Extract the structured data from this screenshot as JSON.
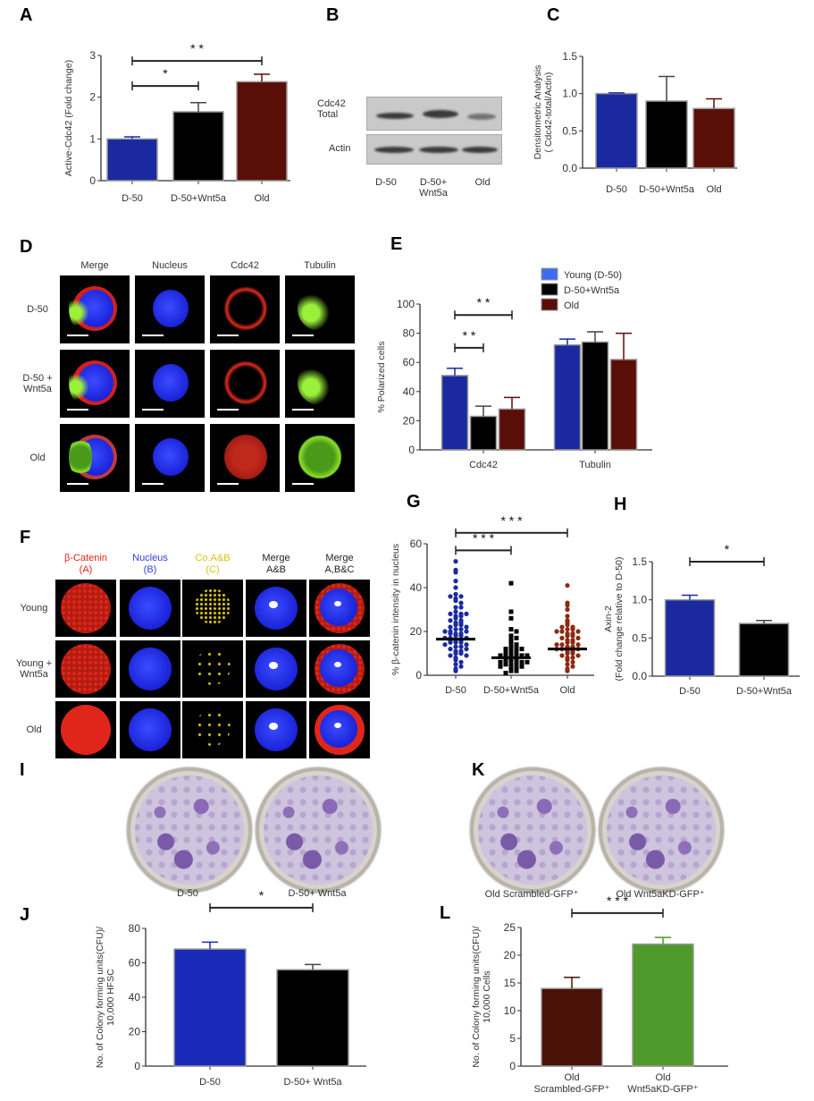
{
  "panels": {
    "A": "A",
    "B": "B",
    "C": "C",
    "D": "D",
    "E": "E",
    "F": "F",
    "G": "G",
    "H": "H",
    "I": "I",
    "J": "J",
    "K": "K",
    "L": "L"
  },
  "colors": {
    "blue": "#1a2a9e",
    "black": "#000000",
    "brown": "#5a0e08",
    "green": "#4e9a2a",
    "legend_blue": "#3d6cf0"
  },
  "blot": {
    "row_labels": [
      "Cdc42\nTotal",
      "Actin"
    ],
    "lanes": [
      "D-50",
      "D-50+\nWnt5a",
      "Old"
    ]
  },
  "panel_D": {
    "columns": [
      "Merge",
      "Nucleus",
      "Cdc42",
      "Tubulin"
    ],
    "rows": [
      "D-50",
      "D-50 +\nWnt5a",
      "Old"
    ]
  },
  "panel_F": {
    "columns": [
      {
        "text": "β-Catenin\n(A)",
        "color": "#e0261b"
      },
      {
        "text": "Nucleus\n(B)",
        "color": "#3440e0"
      },
      {
        "text": "Co.A&B\n(C)",
        "color": "#d8c21a"
      },
      {
        "text": "Merge\nA&B",
        "color": "#222222"
      },
      {
        "text": "Merge\nA,B&C",
        "color": "#222222"
      }
    ],
    "rows": [
      "Young",
      "Young +\nWnt5a",
      "Old"
    ]
  },
  "panel_I": {
    "labels": [
      "D-50",
      "D-50+ Wnt5a"
    ]
  },
  "panel_K": {
    "labels": [
      "Old Scrambled-GFP⁺",
      "Old Wnt5aKD-GFP⁺"
    ]
  },
  "chart_data": [
    {
      "panel": "A",
      "type": "bar",
      "ylabel": "Active-Cdc42 (Fold change)",
      "ylim": [
        0,
        3
      ],
      "ticks": [
        "0",
        "1",
        "2",
        "3"
      ],
      "tick_values": [
        0,
        1,
        2,
        3
      ],
      "categories": [
        "D-50",
        "D-50+Wnt5a",
        "Old"
      ],
      "series": [
        {
          "values": [
            1.0,
            1.65,
            2.37
          ],
          "errors": [
            0.05,
            0.22,
            0.18
          ],
          "colors": [
            "#1a2a9e",
            "#000000",
            "#5a0e08"
          ]
        }
      ],
      "brackets": [
        {
          "from": 0,
          "to": 1,
          "y": 2.27,
          "label": "*"
        },
        {
          "from": 0,
          "to": 2,
          "y": 2.87,
          "label": "* *"
        }
      ]
    },
    {
      "panel": "C",
      "type": "bar",
      "ylabel": "Densitometric Analysis\n( Cdc42-total/Actin)",
      "ylim": [
        0,
        1.5
      ],
      "ticks": [
        "0.0",
        "0.5",
        "1.0",
        "1.5"
      ],
      "tick_values": [
        0,
        0.5,
        1,
        1.5
      ],
      "categories": [
        "D-50",
        "D-50+Wnt5a",
        "Old"
      ],
      "series": [
        {
          "values": [
            1.0,
            0.9,
            0.8
          ],
          "errors": [
            0.01,
            0.33,
            0.13
          ],
          "colors": [
            "#1a2a9e",
            "#000000",
            "#5a0e08"
          ]
        }
      ],
      "brackets": []
    },
    {
      "panel": "E",
      "type": "bar",
      "ylabel": "% Polarized cells",
      "ylim": [
        0,
        100
      ],
      "ticks": [
        "0",
        "20",
        "40",
        "60",
        "80",
        "100"
      ],
      "tick_values": [
        0,
        20,
        40,
        60,
        80,
        100
      ],
      "categories": [
        "Cdc42",
        "Tubulin"
      ],
      "series": [
        {
          "name": "Young (D-50)",
          "values": [
            51,
            72
          ],
          "errors": [
            5,
            4
          ],
          "color": "#1a2a9e"
        },
        {
          "name": "D-50+Wnt5a",
          "values": [
            23,
            74
          ],
          "errors": [
            7,
            7
          ],
          "color": "#000000"
        },
        {
          "name": "Old",
          "values": [
            28,
            62
          ],
          "errors": [
            8,
            18
          ],
          "color": "#5a0e08"
        }
      ],
      "legend": "top-right",
      "brackets": [
        {
          "from": [
            0,
            0
          ],
          "to": [
            1,
            0
          ],
          "y": 70,
          "label": "* *"
        },
        {
          "from": [
            0,
            0
          ],
          "to": [
            2,
            0
          ],
          "y": 92.5,
          "label": "* *"
        }
      ]
    },
    {
      "panel": "G",
      "type": "scatter",
      "ylabel": "% β-catenin intensity in nucleus",
      "ylim": [
        0,
        60
      ],
      "ticks": [
        "0",
        "20",
        "40",
        "60"
      ],
      "tick_values": [
        0,
        20,
        40,
        60
      ],
      "categories": [
        "D-50",
        "D-50+Wnt5a",
        "Old"
      ],
      "groups": [
        {
          "color": "#1a2a9e",
          "mean": 16.5,
          "points": [
            52,
            48,
            47,
            43,
            40,
            37,
            36,
            36,
            35,
            34,
            33,
            31,
            31,
            29,
            28,
            28,
            28,
            27,
            27,
            26,
            25,
            25,
            24,
            24,
            23,
            23,
            22,
            22,
            21,
            21,
            20,
            20,
            20,
            19,
            19,
            19,
            18,
            18,
            17,
            17,
            17,
            16,
            16,
            16,
            15,
            15,
            15,
            14,
            14,
            13,
            13,
            12,
            12,
            11,
            11,
            10,
            10,
            9,
            9,
            8,
            7,
            6,
            5,
            4,
            3,
            2
          ]
        },
        {
          "color": "#000000",
          "mean": 8,
          "points": [
            42,
            29,
            26,
            21,
            20,
            18,
            17,
            16,
            15,
            14,
            13,
            13,
            12,
            12,
            11,
            11,
            10,
            10,
            10,
            9,
            9,
            9,
            8,
            8,
            8,
            7,
            7,
            7,
            6,
            6,
            6,
            5,
            5,
            5,
            4,
            4,
            3,
            3,
            2,
            2,
            1
          ]
        },
        {
          "color": "#8b2a10",
          "mean": 12,
          "points": [
            41,
            33,
            32,
            30,
            27,
            25,
            24,
            23,
            22,
            22,
            21,
            21,
            20,
            20,
            20,
            19,
            19,
            18,
            18,
            17,
            17,
            16,
            16,
            15,
            15,
            14,
            14,
            14,
            13,
            13,
            12,
            12,
            12,
            11,
            11,
            10,
            10,
            9,
            9,
            8,
            8,
            7,
            6,
            5,
            4,
            3,
            2
          ]
        }
      ],
      "brackets": [
        {
          "from": 0,
          "to": 1,
          "y": 57,
          "label": "* * *"
        },
        {
          "from": 0,
          "to": 2,
          "y": 65,
          "label": "* * *"
        }
      ]
    },
    {
      "panel": "H",
      "type": "bar",
      "ylabel": "Axin-2\n(Fold change relative to D-50)",
      "ylim": [
        0,
        1.5
      ],
      "ticks": [
        "0.0",
        "0.5",
        "1.0",
        "1.5"
      ],
      "tick_values": [
        0,
        0.5,
        1,
        1.5
      ],
      "categories": [
        "D-50",
        "D-50+Wnt5a"
      ],
      "series": [
        {
          "values": [
            1.0,
            0.69
          ],
          "errors": [
            0.06,
            0.04
          ],
          "colors": [
            "#1a2a9e",
            "#000000"
          ]
        }
      ],
      "brackets": [
        {
          "from": 0,
          "to": 1,
          "y": 1.5,
          "label": "*"
        }
      ]
    },
    {
      "panel": "J",
      "type": "bar",
      "ylabel": "No. of Colony forming units(CFU)/\n10,000 HFSC",
      "ylim": [
        0,
        80
      ],
      "ticks": [
        "0",
        "20",
        "40",
        "60",
        "80"
      ],
      "tick_values": [
        0,
        20,
        40,
        60,
        80
      ],
      "categories": [
        "D-50",
        "D-50+ Wnt5a"
      ],
      "series": [
        {
          "values": [
            68,
            56
          ],
          "errors": [
            4,
            3
          ],
          "colors": [
            "#1a2ab8",
            "#000000"
          ]
        }
      ],
      "brackets": [
        {
          "from": 0,
          "to": 1,
          "y": 92,
          "label": "*"
        }
      ]
    },
    {
      "panel": "L",
      "type": "bar",
      "ylabel": "No. of Colony forming units(CFU)/\n10,000 Cells",
      "ylim": [
        0,
        25
      ],
      "ticks": [
        "0",
        "5",
        "10",
        "15",
        "20",
        "25"
      ],
      "tick_values": [
        0,
        5,
        10,
        15,
        20,
        25
      ],
      "categories": [
        "Old\nScrambled-GFP⁺",
        "Old\nWnt5aKD-GFP⁺"
      ],
      "series": [
        {
          "values": [
            14,
            22
          ],
          "errors": [
            2,
            1.2
          ],
          "colors": [
            "#4a1208",
            "#4e9a2a"
          ]
        }
      ],
      "brackets": [
        {
          "from": 0,
          "to": 1,
          "y": 27.6,
          "label": "* * *"
        }
      ]
    }
  ]
}
